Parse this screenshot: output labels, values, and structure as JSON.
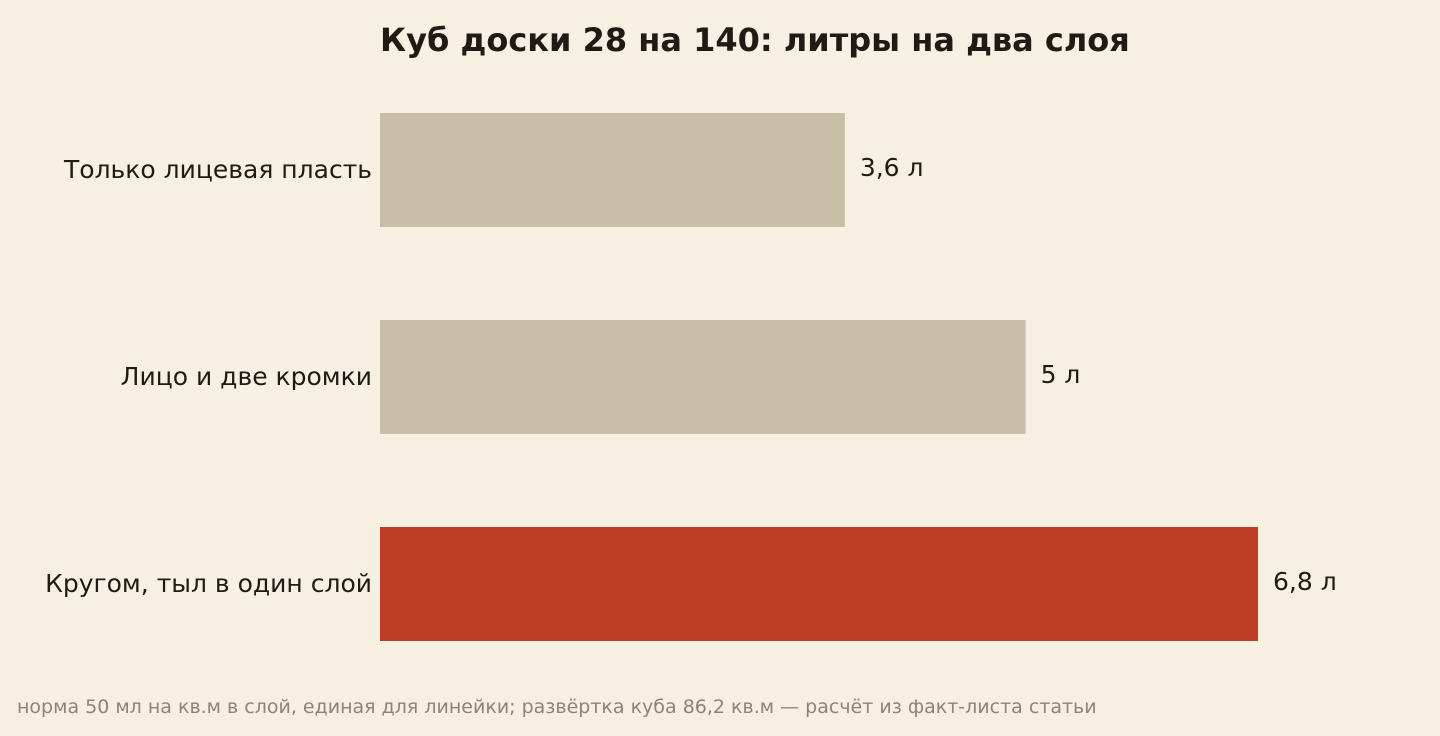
{
  "chart_data": {
    "type": "bar",
    "orientation": "horizontal",
    "title": "Куб доски 28 на 140: литры на два слоя",
    "categories": [
      "Только лицевая пласть",
      "Лицо и две кромки",
      "Кругом, тыл в один слой"
    ],
    "values": [
      3.6,
      5,
      6.8
    ],
    "value_labels": [
      "3,6 л",
      "5 л",
      "6,8 л"
    ],
    "unit": "л",
    "xlim": [
      0,
      6.8
    ],
    "grid": false,
    "legend": "none",
    "bar_colors": [
      "#c9bfa7",
      "#c9bfa7",
      "#bd3d27"
    ]
  },
  "footnote": "норма 50 мл на кв.м в слой, единая для линейки; развёртка куба 86,2 кв.м — расчёт из факт-листа статьи",
  "colors": {
    "background": "#f6f0e3",
    "muted_bar": "#c9bfa7",
    "accent_bar": "#bd3d27",
    "text": "#1f1b14",
    "footnote_text": "#8c8478"
  }
}
